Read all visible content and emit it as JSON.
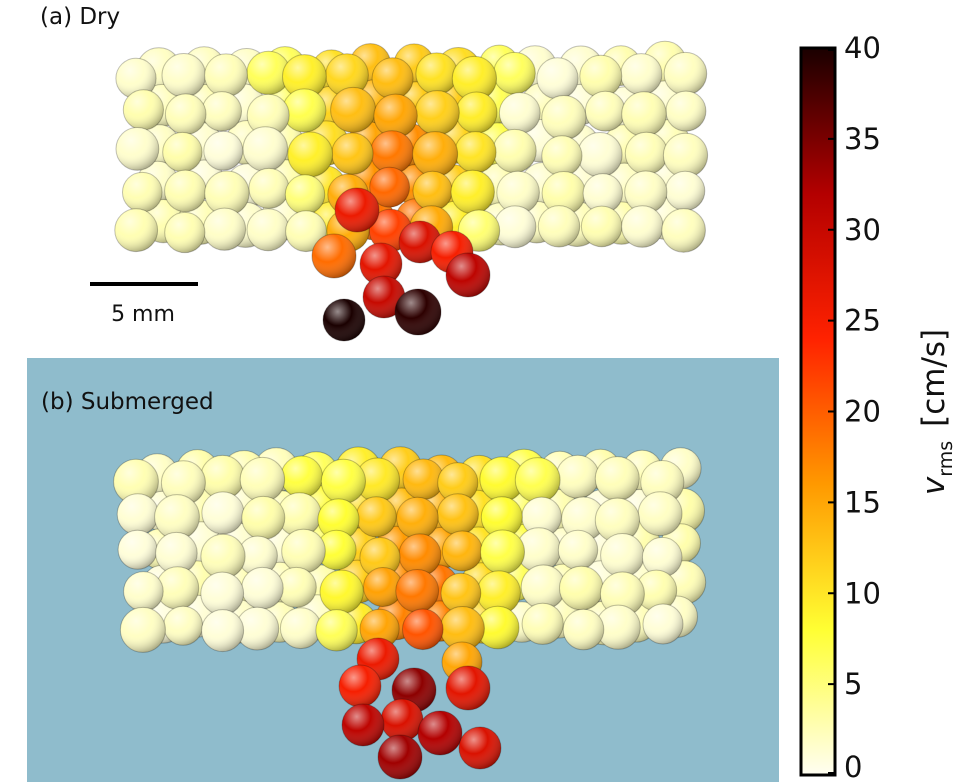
{
  "panel_a": {
    "label": "(a) Dry",
    "scale_bar_label": "5 mm"
  },
  "panel_b": {
    "label": "(b) Submerged",
    "background_color": "#8fbccc"
  },
  "colorbar": {
    "min": 0,
    "max": 40,
    "ticks": [
      0,
      5,
      10,
      15,
      20,
      25,
      30,
      35,
      40
    ],
    "tick_labels": [
      "0",
      "5",
      "10",
      "15",
      "20",
      "25",
      "30",
      "35",
      "40"
    ],
    "label_symbol": "v",
    "label_subscript": "rms",
    "label_unit": "[cm/s]",
    "colormap_stops": [
      "#fffef2",
      "#ffff33",
      "#ff9900",
      "#ff2200",
      "#b30000",
      "#1a0000"
    ]
  }
}
